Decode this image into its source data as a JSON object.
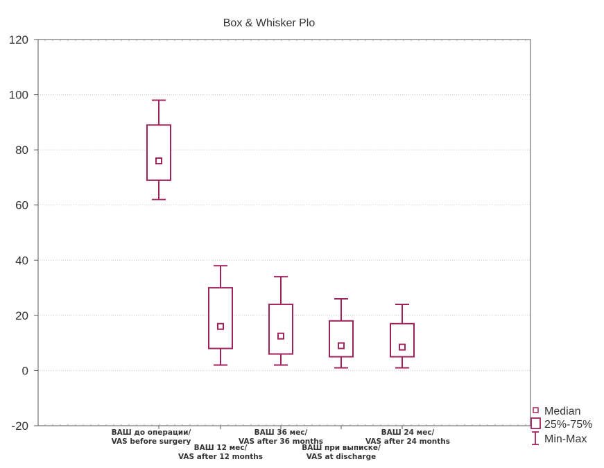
{
  "chart_data": {
    "type": "box",
    "title": "Box & Whisker Plo",
    "xlabel": "",
    "ylabel": "",
    "ylim": [
      -20,
      120
    ],
    "yticks": [
      -20,
      0,
      20,
      40,
      60,
      80,
      100,
      120
    ],
    "ytick_labels": [
      "-20",
      "0",
      "20",
      "40",
      "60",
      "80",
      "100",
      "120"
    ],
    "grid": true,
    "legend_position": "bottom-right, outside plot",
    "color": "#A0225A",
    "categories": [
      [
        "ВАШ до операции/",
        "VAS before surgery"
      ],
      [
        "ВАШ 12 мес/",
        "VAS after 12 months"
      ],
      [
        "ВАШ 36 мес/",
        "VAS after 36 months"
      ],
      [
        "ВАШ при выписке/",
        "VAS at discharge"
      ],
      [
        "ВАШ 24 мес/",
        "VAS after 24 months"
      ]
    ],
    "series": [
      {
        "min": 62,
        "q1": 69,
        "median": 76,
        "q3": 89,
        "max": 98
      },
      {
        "min": 2,
        "q1": 8,
        "median": 16,
        "q3": 30,
        "max": 38
      },
      {
        "min": 2,
        "q1": 6,
        "median": 12.5,
        "q3": 24,
        "max": 34
      },
      {
        "min": 1,
        "q1": 5,
        "median": 9,
        "q3": 18,
        "max": 26
      },
      {
        "min": 1,
        "q1": 5,
        "median": 8.5,
        "q3": 17,
        "max": 24
      }
    ],
    "legend": [
      {
        "symbol": "median-marker",
        "label": "Median"
      },
      {
        "symbol": "box",
        "label": "25%-75%"
      },
      {
        "symbol": "whisker",
        "label": "Min-Max"
      }
    ]
  }
}
